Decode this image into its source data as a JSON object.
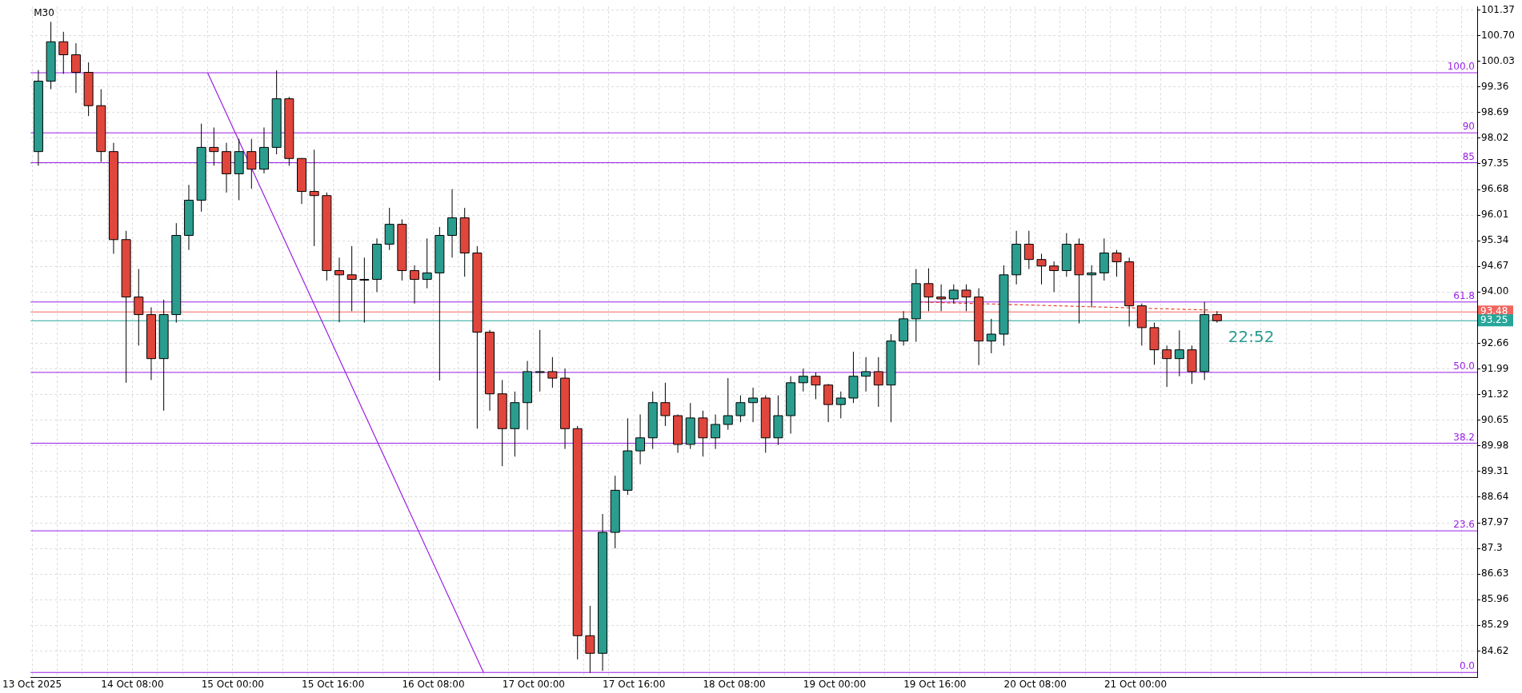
{
  "chart_data": {
    "type": "candlestick",
    "title": "M30",
    "x": [
      "2025-10-13T17:00",
      "2025-10-13T19:00",
      "2025-10-13T21:00",
      "2025-10-13T23:00",
      "2025-10-14T01:00",
      "2025-10-14T03:00",
      "2025-10-14T05:00",
      "2025-10-14T07:00",
      "2025-10-14T09:00",
      "2025-10-14T11:00",
      "2025-10-14T13:00",
      "2025-10-14T15:00",
      "2025-10-14T17:00",
      "2025-10-14T19:00",
      "2025-10-14T21:00",
      "2025-10-14T23:00",
      "2025-10-15T01:00",
      "2025-10-15T03:00",
      "2025-10-15T05:00",
      "2025-10-15T07:00",
      "2025-10-15T09:00",
      "2025-10-15T11:00",
      "2025-10-15T13:00",
      "2025-10-15T15:00",
      "2025-10-15T17:00",
      "2025-10-15T19:00",
      "2025-10-15T21:00",
      "2025-10-15T23:00",
      "2025-10-16T01:00",
      "2025-10-16T03:00",
      "2025-10-16T05:00",
      "2025-10-16T07:00",
      "2025-10-16T09:00",
      "2025-10-16T11:00",
      "2025-10-16T13:00",
      "2025-10-16T15:00",
      "2025-10-16T17:00",
      "2025-10-16T19:00",
      "2025-10-16T21:00",
      "2025-10-16T23:00",
      "2025-10-17T01:00",
      "2025-10-17T03:00",
      "2025-10-17T05:00",
      "2025-10-17T07:00",
      "2025-10-17T09:00",
      "2025-10-17T11:00",
      "2025-10-17T13:00",
      "2025-10-17T15:00",
      "2025-10-17T17:00",
      "2025-10-17T19:00",
      "2025-10-17T21:00",
      "2025-10-17T23:00",
      "2025-10-18T01:00",
      "2025-10-18T03:00",
      "2025-10-18T05:00",
      "2025-10-18T07:00",
      "2025-10-18T09:00",
      "2025-10-18T11:00",
      "2025-10-18T13:00",
      "2025-10-18T15:00",
      "2025-10-18T17:00",
      "2025-10-18T19:00",
      "2025-10-18T21:00",
      "2025-10-18T23:00",
      "2025-10-19T01:00",
      "2025-10-19T03:00",
      "2025-10-19T05:00",
      "2025-10-19T07:00",
      "2025-10-19T09:00",
      "2025-10-19T11:00",
      "2025-10-19T13:00",
      "2025-10-19T15:00",
      "2025-10-19T17:00",
      "2025-10-19T19:00",
      "2025-10-19T21:00",
      "2025-10-19T23:00",
      "2025-10-20T01:00",
      "2025-10-20T03:00",
      "2025-10-20T05:00",
      "2025-10-20T07:00",
      "2025-10-20T09:00",
      "2025-10-20T11:00",
      "2025-10-20T13:00",
      "2025-10-20T15:00",
      "2025-10-20T17:00",
      "2025-10-20T19:00",
      "2025-10-20T21:00",
      "2025-10-20T23:00",
      "2025-10-21T01:00",
      "2025-10-21T03:00",
      "2025-10-21T05:00",
      "2025-10-21T07:00",
      "2025-10-21T09:00",
      "2025-10-21T11:00",
      "2025-10-21T13:00"
    ],
    "ohlc": [
      [
        97.67,
        99.8,
        97.3,
        99.51
      ],
      [
        99.51,
        101.06,
        99.3,
        100.54
      ],
      [
        100.54,
        100.8,
        99.7,
        100.2
      ],
      [
        100.2,
        100.5,
        99.2,
        99.74
      ],
      [
        99.74,
        100.0,
        98.6,
        98.87
      ],
      [
        98.87,
        99.3,
        97.4,
        97.67
      ],
      [
        97.67,
        97.9,
        95.0,
        95.37
      ],
      [
        95.37,
        95.6,
        91.63,
        93.87
      ],
      [
        93.87,
        94.6,
        92.6,
        93.41
      ],
      [
        93.41,
        93.6,
        91.7,
        92.26
      ],
      [
        92.26,
        93.8,
        90.9,
        93.41
      ],
      [
        93.41,
        95.8,
        93.2,
        95.48
      ],
      [
        95.48,
        96.8,
        95.1,
        96.4
      ],
      [
        96.4,
        98.4,
        96.1,
        97.78
      ],
      [
        97.78,
        98.3,
        97.3,
        97.67
      ],
      [
        97.67,
        97.9,
        96.6,
        97.09
      ],
      [
        97.09,
        98.0,
        96.4,
        97.67
      ],
      [
        97.67,
        98.0,
        96.7,
        97.21
      ],
      [
        97.21,
        98.3,
        97.1,
        97.78
      ],
      [
        97.78,
        99.79,
        97.6,
        99.05
      ],
      [
        99.05,
        99.1,
        97.3,
        97.49
      ],
      [
        97.49,
        97.5,
        96.3,
        96.63
      ],
      [
        96.63,
        97.72,
        95.2,
        96.52
      ],
      [
        96.52,
        96.6,
        94.3,
        94.56
      ],
      [
        94.56,
        94.9,
        93.21,
        94.45
      ],
      [
        94.45,
        95.2,
        93.5,
        94.33
      ],
      [
        94.33,
        94.9,
        93.2,
        94.33
      ],
      [
        94.33,
        95.4,
        94.0,
        95.25
      ],
      [
        95.25,
        96.2,
        95.1,
        95.77
      ],
      [
        95.77,
        95.9,
        94.3,
        94.56
      ],
      [
        94.56,
        94.7,
        93.7,
        94.33
      ],
      [
        94.33,
        95.4,
        94.1,
        94.5
      ],
      [
        94.5,
        95.7,
        91.69,
        95.48
      ],
      [
        95.48,
        96.69,
        94.9,
        95.94
      ],
      [
        95.94,
        96.2,
        94.4,
        95.02
      ],
      [
        95.02,
        95.2,
        90.43,
        92.95
      ],
      [
        92.95,
        93.01,
        90.9,
        91.34
      ],
      [
        91.34,
        91.7,
        89.45,
        90.43
      ],
      [
        90.43,
        91.4,
        89.7,
        91.11
      ],
      [
        91.11,
        92.2,
        90.4,
        91.92
      ],
      [
        91.92,
        93.01,
        91.4,
        91.92
      ],
      [
        91.92,
        92.3,
        91.5,
        91.75
      ],
      [
        91.75,
        92.0,
        89.9,
        90.43
      ],
      [
        90.43,
        90.5,
        84.4,
        85.02
      ],
      [
        85.02,
        85.8,
        84.05,
        84.56
      ],
      [
        84.56,
        88.2,
        84.1,
        87.72
      ],
      [
        87.72,
        89.2,
        87.3,
        88.82
      ],
      [
        88.82,
        90.7,
        88.7,
        89.85
      ],
      [
        89.85,
        90.8,
        89.5,
        90.19
      ],
      [
        90.19,
        91.4,
        89.9,
        91.11
      ],
      [
        91.11,
        91.63,
        90.5,
        90.77
      ],
      [
        90.77,
        90.8,
        89.8,
        90.02
      ],
      [
        90.02,
        91.1,
        89.9,
        90.71
      ],
      [
        90.71,
        90.9,
        89.7,
        90.19
      ],
      [
        90.19,
        90.8,
        89.9,
        90.54
      ],
      [
        90.54,
        91.75,
        90.4,
        90.77
      ],
      [
        90.77,
        91.3,
        90.6,
        91.11
      ],
      [
        91.11,
        91.5,
        90.6,
        91.23
      ],
      [
        91.23,
        91.3,
        89.8,
        90.19
      ],
      [
        90.19,
        91.3,
        90.0,
        90.77
      ],
      [
        90.77,
        91.8,
        90.3,
        91.63
      ],
      [
        91.63,
        92.0,
        91.4,
        91.8
      ],
      [
        91.8,
        91.9,
        91.2,
        91.57
      ],
      [
        91.57,
        91.6,
        90.6,
        91.06
      ],
      [
        91.06,
        91.4,
        90.7,
        91.23
      ],
      [
        91.23,
        92.44,
        91.1,
        91.8
      ],
      [
        91.8,
        92.3,
        91.4,
        91.92
      ],
      [
        91.92,
        92.3,
        91.0,
        91.57
      ],
      [
        91.57,
        92.9,
        90.6,
        92.72
      ],
      [
        92.72,
        93.5,
        92.6,
        93.3
      ],
      [
        93.3,
        94.6,
        92.7,
        94.22
      ],
      [
        94.22,
        94.62,
        93.5,
        93.87
      ],
      [
        93.87,
        94.2,
        93.5,
        93.82
      ],
      [
        93.82,
        94.2,
        93.7,
        94.05
      ],
      [
        94.05,
        94.2,
        93.5,
        93.87
      ],
      [
        93.87,
        94.1,
        92.09,
        92.72
      ],
      [
        92.72,
        93.3,
        92.4,
        92.9
      ],
      [
        92.9,
        94.7,
        92.6,
        94.45
      ],
      [
        94.45,
        95.6,
        94.2,
        95.25
      ],
      [
        95.25,
        95.6,
        94.6,
        94.85
      ],
      [
        94.85,
        95.0,
        94.2,
        94.68
      ],
      [
        94.68,
        94.8,
        94.0,
        94.56
      ],
      [
        94.56,
        95.54,
        94.4,
        95.25
      ],
      [
        95.25,
        95.4,
        93.18,
        94.45
      ],
      [
        94.45,
        94.7,
        93.6,
        94.5
      ],
      [
        94.5,
        95.4,
        94.3,
        95.02
      ],
      [
        95.02,
        95.1,
        94.4,
        94.79
      ],
      [
        94.79,
        94.9,
        93.1,
        93.64
      ],
      [
        93.64,
        93.7,
        92.6,
        93.07
      ],
      [
        93.07,
        93.2,
        92.1,
        92.49
      ],
      [
        92.49,
        92.6,
        91.52,
        92.26
      ],
      [
        92.26,
        93.0,
        91.8,
        92.49
      ],
      [
        92.49,
        92.6,
        91.6,
        91.92
      ],
      [
        91.92,
        93.74,
        91.7,
        93.41
      ],
      [
        93.41,
        93.5,
        93.2,
        93.25
      ]
    ],
    "series": [
      {
        "type": "line",
        "color": "#9a1fe6",
        "x": [
          "2025-10-14T20:00",
          "2025-10-16T16:00"
        ],
        "values": [
          99.73,
          84.06
        ]
      },
      {
        "type": "line",
        "color": "#e8452c",
        "line_style": "dashed",
        "x": [
          "2025-10-19T13:30",
          "2025-10-21T11:45"
        ],
        "values": [
          93.74,
          93.53
        ]
      }
    ],
    "xlim": [
      "2025-10-13T15:45",
      "2025-10-23T06:30"
    ],
    "xticks": [
      {
        "value": "2025-10-13T16:00",
        "label": "13 Oct 2025"
      },
      {
        "value": "2025-10-13T20:00",
        "label": null
      },
      {
        "value": "2025-10-14T00:00",
        "label": null
      },
      {
        "value": "2025-10-14T04:00",
        "label": null
      },
      {
        "value": "2025-10-14T08:00",
        "label": "14 Oct 08:00"
      },
      {
        "value": "2025-10-14T12:00",
        "label": null
      },
      {
        "value": "2025-10-14T16:00",
        "label": null
      },
      {
        "value": "2025-10-14T20:00",
        "label": null
      },
      {
        "value": "2025-10-15T00:00",
        "label": "15 Oct 00:00"
      },
      {
        "value": "2025-10-15T04:00",
        "label": null
      },
      {
        "value": "2025-10-15T08:00",
        "label": null
      },
      {
        "value": "2025-10-15T12:00",
        "label": null
      },
      {
        "value": "2025-10-15T16:00",
        "label": "15 Oct 16:00"
      },
      {
        "value": "2025-10-15T20:00",
        "label": null
      },
      {
        "value": "2025-10-16T00:00",
        "label": null
      },
      {
        "value": "2025-10-16T04:00",
        "label": null
      },
      {
        "value": "2025-10-16T08:00",
        "label": "16 Oct 08:00"
      },
      {
        "value": "2025-10-16T12:00",
        "label": null
      },
      {
        "value": "2025-10-16T16:00",
        "label": null
      },
      {
        "value": "2025-10-16T20:00",
        "label": null
      },
      {
        "value": "2025-10-17T00:00",
        "label": "17 Oct 00:00"
      },
      {
        "value": "2025-10-17T04:00",
        "label": null
      },
      {
        "value": "2025-10-17T08:00",
        "label": null
      },
      {
        "value": "2025-10-17T12:00",
        "label": null
      },
      {
        "value": "2025-10-17T16:00",
        "label": "17 Oct 16:00"
      },
      {
        "value": "2025-10-17T20:00",
        "label": null
      },
      {
        "value": "2025-10-18T00:00",
        "label": null
      },
      {
        "value": "2025-10-18T04:00",
        "label": null
      },
      {
        "value": "2025-10-18T08:00",
        "label": "18 Oct 08:00"
      },
      {
        "value": "2025-10-18T12:00",
        "label": null
      },
      {
        "value": "2025-10-18T16:00",
        "label": null
      },
      {
        "value": "2025-10-18T20:00",
        "label": null
      },
      {
        "value": "2025-10-19T00:00",
        "label": "19 Oct 00:00"
      },
      {
        "value": "2025-10-19T04:00",
        "label": null
      },
      {
        "value": "2025-10-19T08:00",
        "label": null
      },
      {
        "value": "2025-10-19T12:00",
        "label": null
      },
      {
        "value": "2025-10-19T16:00",
        "label": "19 Oct 16:00"
      },
      {
        "value": "2025-10-19T20:00",
        "label": null
      },
      {
        "value": "2025-10-20T00:00",
        "label": null
      },
      {
        "value": "2025-10-20T04:00",
        "label": null
      },
      {
        "value": "2025-10-20T08:00",
        "label": "20 Oct 08:00"
      },
      {
        "value": "2025-10-20T12:00",
        "label": null
      },
      {
        "value": "2025-10-20T16:00",
        "label": null
      },
      {
        "value": "2025-10-20T20:00",
        "label": null
      },
      {
        "value": "2025-10-21T00:00",
        "label": "21 Oct 00:00"
      },
      {
        "value": "2025-10-21T04:00",
        "label": null
      },
      {
        "value": "2025-10-21T08:00",
        "label": null
      },
      {
        "value": "2025-10-21T12:00",
        "label": null
      },
      {
        "value": "2025-10-21T16:00",
        "label": null
      },
      {
        "value": "2025-10-21T20:00",
        "label": null
      },
      {
        "value": "2025-10-22T00:00",
        "label": null
      },
      {
        "value": "2025-10-22T04:00",
        "label": null
      },
      {
        "value": "2025-10-22T08:00",
        "label": null
      },
      {
        "value": "2025-10-22T12:00",
        "label": null
      },
      {
        "value": "2025-10-22T16:00",
        "label": null
      },
      {
        "value": "2025-10-22T20:00",
        "label": null
      },
      {
        "value": "2025-10-23T00:00",
        "label": null
      },
      {
        "value": "2025-10-23T04:00",
        "label": null
      }
    ],
    "ylim": [
      83.94,
      101.46
    ],
    "yticks": [
      101.37,
      {
        "value": 100.7,
        "label": "100.70"
      },
      100.03,
      99.36,
      98.69,
      98.02,
      97.35,
      96.68,
      96.01,
      95.34,
      94.67,
      {
        "value": 94.0,
        "label": "94.00"
      },
      92.66,
      91.99,
      91.32,
      90.65,
      89.98,
      89.31,
      88.64,
      87.97,
      87.3,
      86.63,
      85.96,
      85.29,
      84.62
    ],
    "ref_lines": [
      {
        "axis": "y",
        "value": 99.73,
        "color": "#9a1fe6"
      },
      {
        "axis": "y",
        "value": 98.16,
        "color": "#9a1fe6"
      },
      {
        "axis": "y",
        "value": 97.38,
        "color": "#9a1fe6"
      },
      {
        "axis": "y",
        "value": 93.74,
        "color": "#9a1fe6"
      },
      {
        "axis": "y",
        "value": 91.9,
        "color": "#9a1fe6"
      },
      {
        "axis": "y",
        "value": 90.05,
        "color": "#9a1fe6"
      },
      {
        "axis": "y",
        "value": 87.76,
        "color": "#9a1fe6"
      },
      {
        "axis": "y",
        "value": 84.06,
        "color": "#9a1fe6"
      },
      {
        "axis": "y",
        "value": 93.48,
        "label": "93.48",
        "color": "#f0665e"
      },
      {
        "axis": "y",
        "value": 93.25,
        "label": "93.25",
        "color": "#26a69a"
      }
    ],
    "annotations": [
      "22:52",
      "100.0",
      "90",
      "85",
      "61.8",
      "50.0",
      "38.2",
      "23.6",
      "0.0"
    ],
    "grid": true,
    "legend": false
  }
}
